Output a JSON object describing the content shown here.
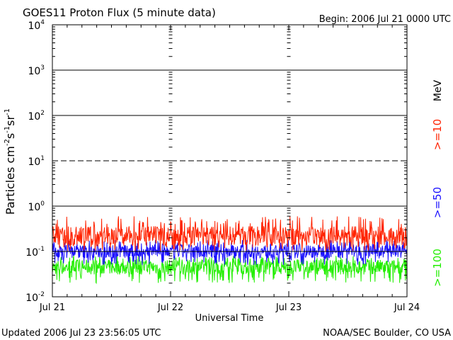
{
  "header": {
    "title": "GOES11 Proton Flux (5 minute data)",
    "begin": "Begin: 2006 Jul 21 0000 UTC"
  },
  "footer": {
    "updated": "Updated 2006 Jul 23 23:56:05 UTC",
    "credit": "NOAA/SEC Boulder, CO USA"
  },
  "colors": {
    "ge10": "#ff2200",
    "ge50": "#1a10ff",
    "ge100": "#22ee00",
    "gridline": "#000000"
  },
  "chart_data": {
    "type": "line",
    "title": "GOES11 Proton Flux (5 minute data)",
    "xlabel": "Universal Time",
    "ylabel": "Particles cm⁻² s⁻¹ sr⁻¹",
    "unit_label": "MeV",
    "y_scale": "log",
    "ylim": [
      0.01,
      10000
    ],
    "y_ticks": [
      {
        "value": 10000,
        "base": "10",
        "exp": "4"
      },
      {
        "value": 1000,
        "base": "10",
        "exp": "3"
      },
      {
        "value": 100,
        "base": "10",
        "exp": "2"
      },
      {
        "value": 10,
        "base": "10",
        "exp": "1"
      },
      {
        "value": 1,
        "base": "10",
        "exp": "0"
      },
      {
        "value": 0.1,
        "base": "10",
        "exp": "-1"
      },
      {
        "value": 0.01,
        "base": "10",
        "exp": "-2"
      }
    ],
    "x_ticks": [
      "Jul 21",
      "Jul 22",
      "Jul 23",
      "Jul 24"
    ],
    "xlim_days": [
      0,
      3
    ],
    "reference_lines": [
      {
        "value": 1000,
        "style": "solid"
      },
      {
        "value": 100,
        "style": "solid"
      },
      {
        "value": 10,
        "style": "dashed"
      },
      {
        "value": 1,
        "style": "solid"
      },
      {
        "value": 0.1,
        "style": "solid"
      }
    ],
    "grid": false,
    "series": [
      {
        "name": ">=10",
        "color": "#ff2200",
        "approx_level": 0.22,
        "approx_range": [
          0.1,
          0.6
        ]
      },
      {
        "name": ">=50",
        "color": "#1a10ff",
        "approx_level": 0.1,
        "approx_range": [
          0.05,
          0.18
        ]
      },
      {
        "name": ">=100",
        "color": "#22ee00",
        "approx_level": 0.045,
        "approx_range": [
          0.02,
          0.08
        ]
      }
    ]
  }
}
